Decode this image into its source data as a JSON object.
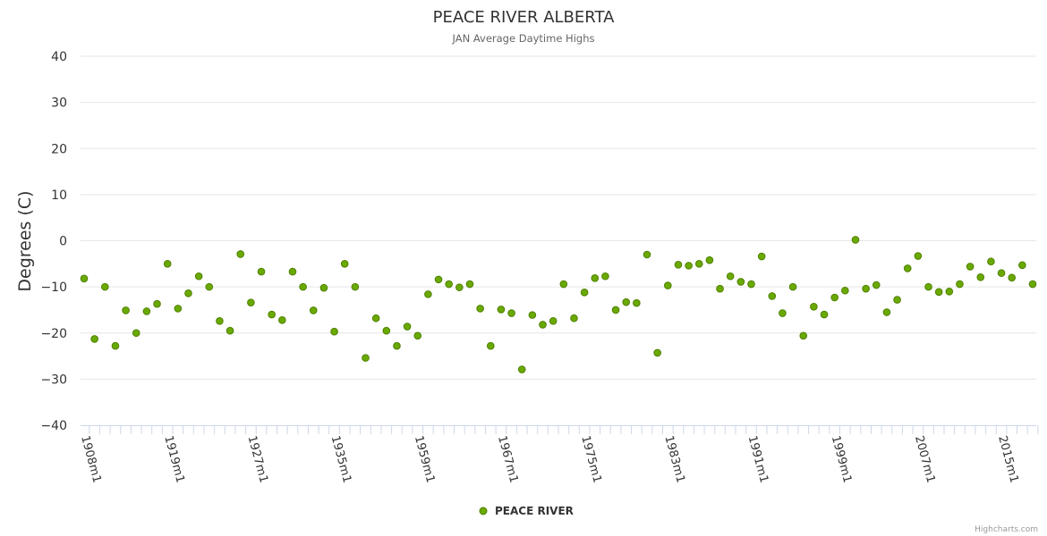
{
  "chart_data": {
    "type": "scatter",
    "title": "PEACE RIVER ALBERTA",
    "subtitle": "JAN Average Daytime Highs",
    "ylabel": "Degrees (C)",
    "xlabel": "",
    "ylim": [
      -40,
      40
    ],
    "y_ticks": [
      40,
      30,
      20,
      10,
      0,
      -10,
      -20,
      -30,
      -40
    ],
    "y_tick_labels": [
      "40",
      "30",
      "20",
      "10",
      "0",
      "−10",
      "−20",
      "−30",
      "−40"
    ],
    "x_tick_labels": [
      "1908m1",
      "1919m1",
      "1927m1",
      "1935m1",
      "1959m1",
      "1967m1",
      "1975m1",
      "1983m1",
      "1991m1",
      "1999m1",
      "2007m1",
      "2015m1"
    ],
    "x_tick_label_indices": [
      0,
      8,
      16,
      24,
      32,
      40,
      48,
      56,
      64,
      72,
      80,
      88
    ],
    "legend": "bottom-center",
    "grid": true,
    "series": [
      {
        "name": "PEACE RIVER",
        "color": "#6aaa00",
        "values": [
          -8.2,
          -21.3,
          -10.0,
          -22.8,
          -15.1,
          -20.0,
          -15.3,
          -13.7,
          -5.0,
          -14.7,
          -11.4,
          -7.7,
          -10.0,
          -17.4,
          -19.5,
          -2.9,
          -13.4,
          -6.7,
          -16.0,
          -17.2,
          -6.7,
          -10.0,
          -15.1,
          -10.2,
          -19.7,
          -5.0,
          -10.0,
          -25.4,
          -16.8,
          -19.5,
          -22.8,
          -18.6,
          -20.6,
          -11.6,
          -8.4,
          -9.4,
          -10.1,
          -9.4,
          -14.7,
          -22.8,
          -14.9,
          -15.7,
          -27.9,
          -16.1,
          -18.2,
          -17.4,
          -9.4,
          -16.8,
          -11.2,
          -8.1,
          -7.7,
          -15.0,
          -13.3,
          -13.5,
          -3.0,
          -24.3,
          -9.7,
          -5.2,
          -5.4,
          -5.0,
          -4.2,
          -10.4,
          -7.7,
          -8.9,
          -9.4,
          -3.4,
          -12.0,
          -15.7,
          -10.0,
          -20.6,
          -14.3,
          -16.0,
          -12.3,
          -10.8,
          0.2,
          -10.4,
          -9.6,
          -15.5,
          -12.8,
          -6.0,
          -3.3,
          -10.0,
          -11.1,
          -11.0,
          -9.4,
          -5.6,
          -7.9,
          -4.5,
          -7.0,
          -8.0,
          -5.3,
          -9.4
        ]
      }
    ],
    "credits": "Highcharts.com"
  }
}
